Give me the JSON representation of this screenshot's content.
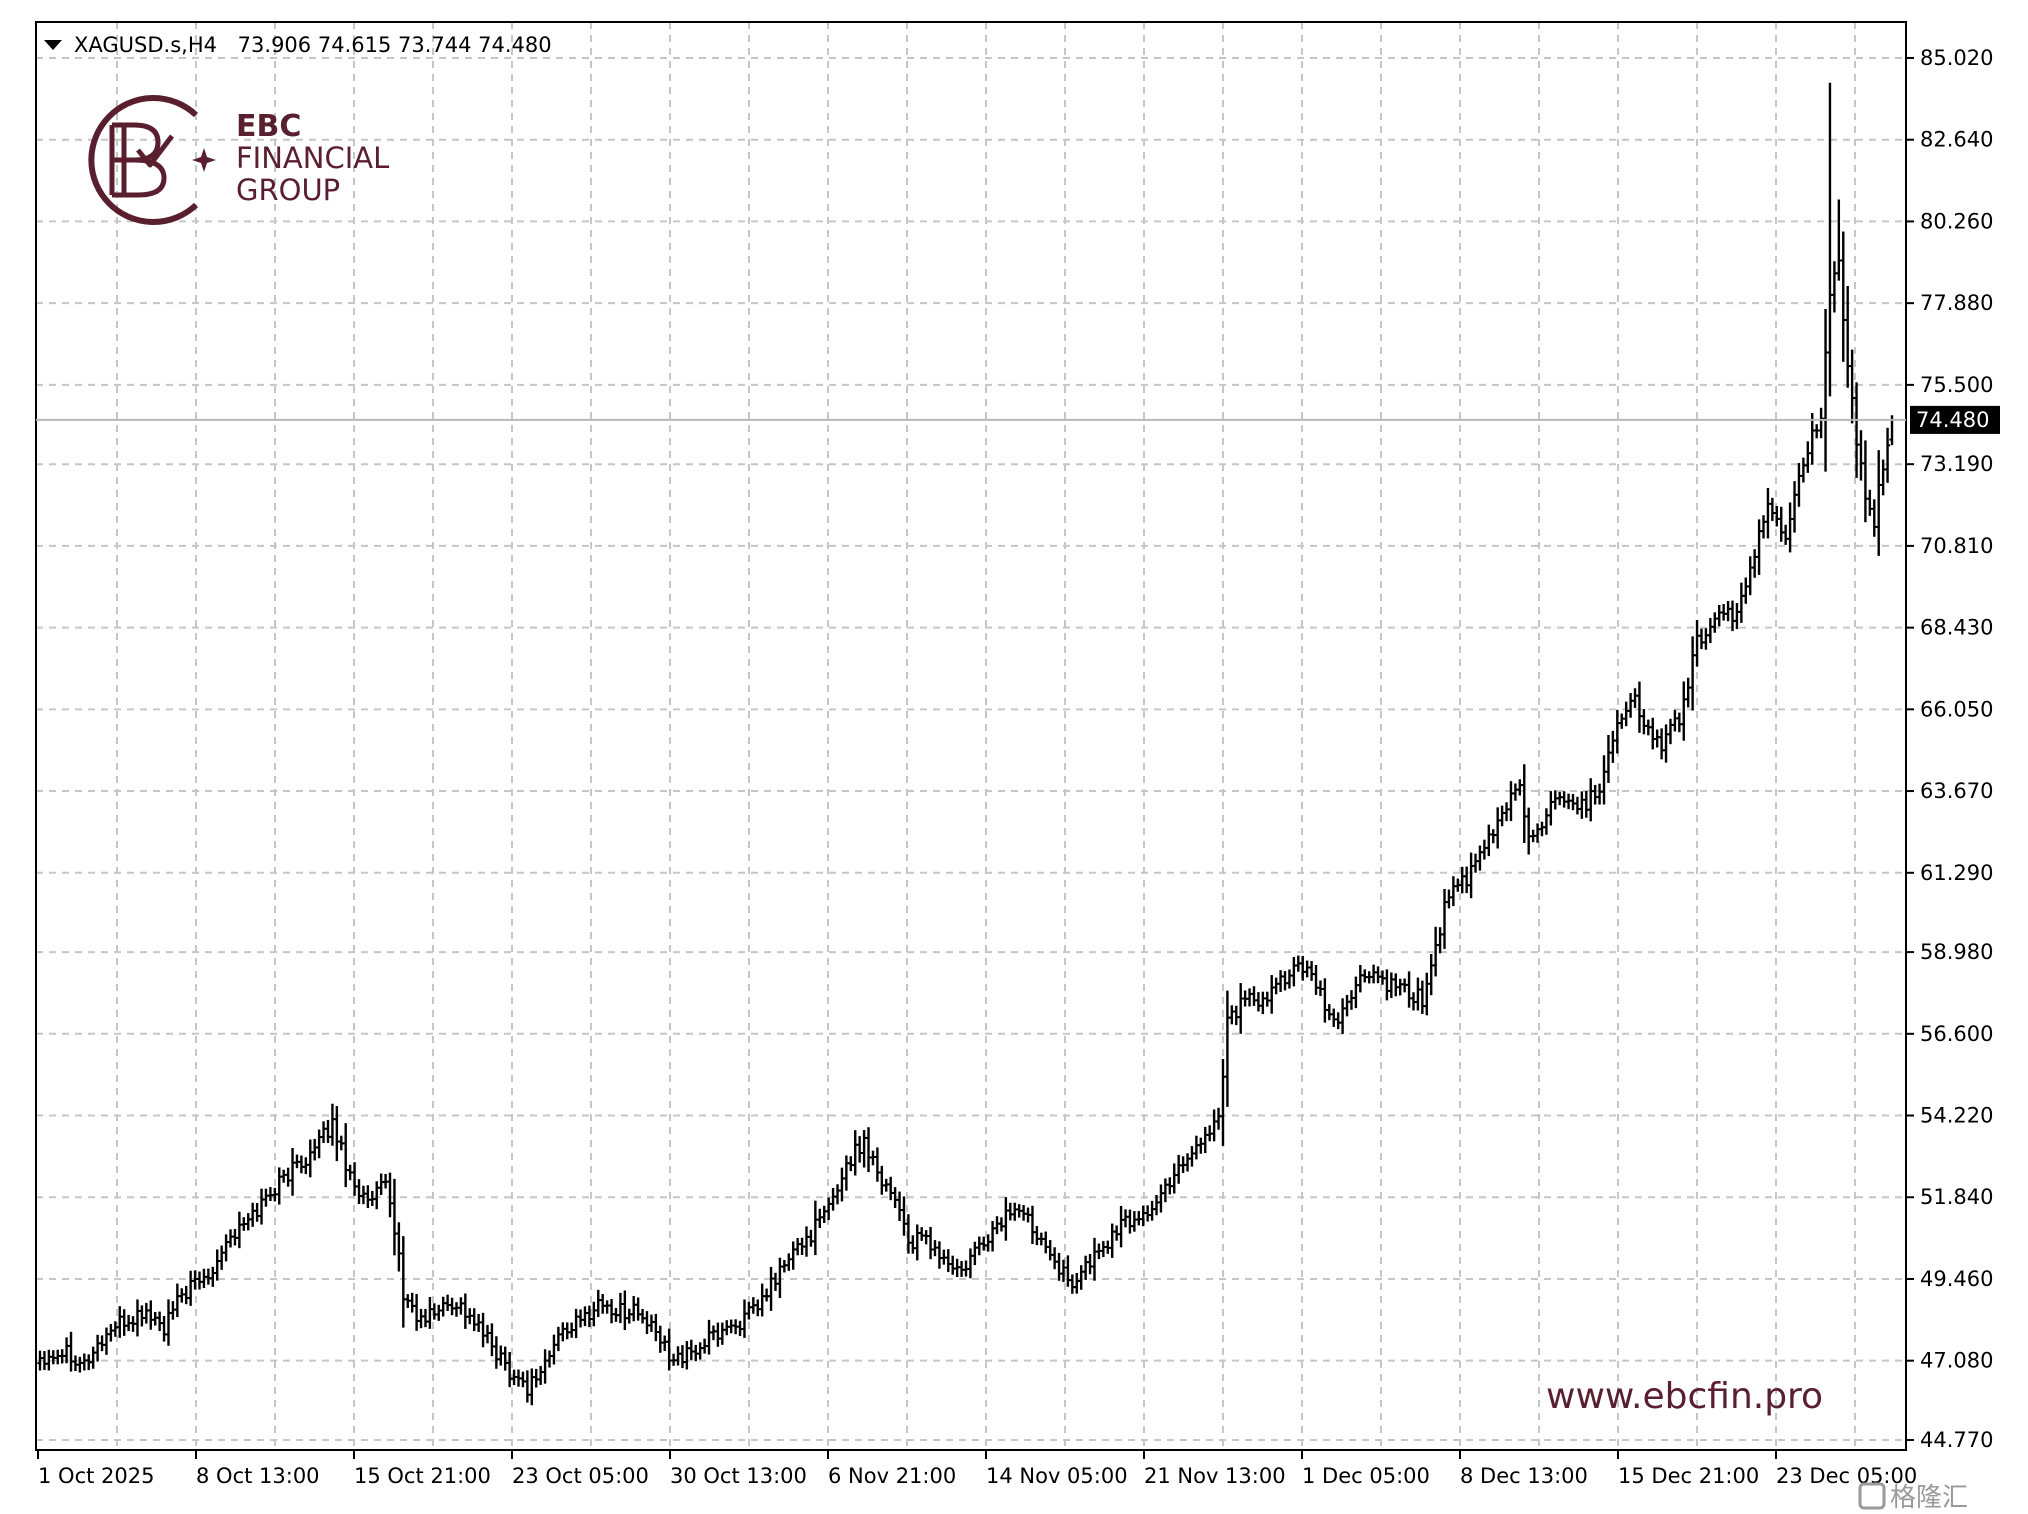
{
  "window": {
    "symbol_label": "XAGUSD.s,H4",
    "ohlc_label": "73.906 74.615 73.744 74.480"
  },
  "brand": {
    "logo_line1": "EBC",
    "logo_line2": "FINANCIAL",
    "logo_line3": "GROUP",
    "url": "www.ebcfin.pro",
    "watermark": "格隆汇",
    "color": "#5a1f2e"
  },
  "chart_data": {
    "type": "ohlc-bar",
    "symbol": "XAGUSD.s",
    "timeframe": "H4",
    "current_price": 74.48,
    "current_price_label": "74.480",
    "last_bar": {
      "open": 73.906,
      "high": 74.615,
      "low": 73.744,
      "close": 74.48
    },
    "ylim": [
      44.77,
      85.02
    ],
    "y_ticks": [
      "85.020",
      "82.640",
      "80.260",
      "77.880",
      "75.500",
      "73.190",
      "70.810",
      "68.430",
      "66.050",
      "63.670",
      "61.290",
      "58.980",
      "56.600",
      "54.220",
      "51.840",
      "49.460",
      "47.080",
      "44.770"
    ],
    "x_ticks": [
      "1 Oct 2025",
      "8 Oct 13:00",
      "15 Oct 21:00",
      "23 Oct 05:00",
      "30 Oct 13:00",
      "6 Nov 21:00",
      "14 Nov 05:00",
      "21 Nov 13:00",
      "1 Dec 05:00",
      "8 Dec 13:00",
      "15 Dec 21:00",
      "23 Dec 05:00"
    ],
    "grid": true,
    "close_anchors": [
      [
        0,
        47.2
      ],
      [
        6,
        47.4
      ],
      [
        10,
        47.0
      ],
      [
        16,
        48.0
      ],
      [
        24,
        48.5
      ],
      [
        28,
        48.0
      ],
      [
        32,
        49.0
      ],
      [
        38,
        49.6
      ],
      [
        42,
        50.6
      ],
      [
        46,
        51.0
      ],
      [
        52,
        52.0
      ],
      [
        58,
        52.8
      ],
      [
        62,
        53.2
      ],
      [
        66,
        54.0
      ],
      [
        70,
        52.5
      ],
      [
        74,
        51.6
      ],
      [
        78,
        52.2
      ],
      [
        80,
        51.0
      ],
      [
        82,
        49.0
      ],
      [
        86,
        48.2
      ],
      [
        90,
        48.6
      ],
      [
        94,
        48.8
      ],
      [
        98,
        48.2
      ],
      [
        102,
        47.5
      ],
      [
        106,
        46.8
      ],
      [
        110,
        46.3
      ],
      [
        114,
        47.0
      ],
      [
        118,
        48.0
      ],
      [
        122,
        48.2
      ],
      [
        126,
        48.8
      ],
      [
        130,
        48.5
      ],
      [
        134,
        48.6
      ],
      [
        138,
        48.0
      ],
      [
        142,
        47.3
      ],
      [
        146,
        47.2
      ],
      [
        150,
        47.6
      ],
      [
        154,
        48.0
      ],
      [
        158,
        48.2
      ],
      [
        162,
        48.6
      ],
      [
        166,
        49.5
      ],
      [
        170,
        50.2
      ],
      [
        174,
        50.8
      ],
      [
        178,
        51.5
      ],
      [
        182,
        52.8
      ],
      [
        186,
        53.5
      ],
      [
        190,
        52.4
      ],
      [
        194,
        51.6
      ],
      [
        196,
        50.5
      ],
      [
        200,
        50.6
      ],
      [
        204,
        50.0
      ],
      [
        208,
        49.6
      ],
      [
        212,
        50.4
      ],
      [
        216,
        51.0
      ],
      [
        220,
        51.6
      ],
      [
        224,
        51.0
      ],
      [
        228,
        50.4
      ],
      [
        232,
        49.3
      ],
      [
        236,
        49.8
      ],
      [
        240,
        50.4
      ],
      [
        244,
        51.0
      ],
      [
        248,
        51.3
      ],
      [
        252,
        51.6
      ],
      [
        256,
        52.6
      ],
      [
        260,
        53.2
      ],
      [
        264,
        53.8
      ],
      [
        266,
        54.2
      ],
      [
        268,
        57.0
      ],
      [
        272,
        57.6
      ],
      [
        276,
        57.4
      ],
      [
        280,
        58.2
      ],
      [
        284,
        58.6
      ],
      [
        288,
        58.0
      ],
      [
        292,
        56.8
      ],
      [
        296,
        57.8
      ],
      [
        300,
        58.4
      ],
      [
        304,
        58.0
      ],
      [
        308,
        57.8
      ],
      [
        312,
        57.6
      ],
      [
        314,
        58.6
      ],
      [
        318,
        60.8
      ],
      [
        322,
        61.0
      ],
      [
        326,
        62.0
      ],
      [
        330,
        63.0
      ],
      [
        334,
        64.0
      ],
      [
        336,
        62.2
      ],
      [
        340,
        63.0
      ],
      [
        344,
        63.6
      ],
      [
        348,
        63.2
      ],
      [
        352,
        63.8
      ],
      [
        356,
        65.8
      ],
      [
        360,
        66.3
      ],
      [
        362,
        65.6
      ],
      [
        366,
        65.0
      ],
      [
        370,
        65.8
      ],
      [
        374,
        68.0
      ],
      [
        378,
        68.6
      ],
      [
        382,
        68.8
      ],
      [
        386,
        70.0
      ],
      [
        390,
        72.0
      ],
      [
        394,
        71.2
      ],
      [
        398,
        73.4
      ],
      [
        402,
        74.5
      ],
      [
        404,
        78.0
      ],
      [
        406,
        79.0
      ],
      [
        408,
        75.8
      ],
      [
        410,
        74.0
      ],
      [
        412,
        72.0
      ],
      [
        414,
        71.5
      ],
      [
        416,
        73.2
      ],
      [
        418,
        74.48
      ]
    ]
  }
}
